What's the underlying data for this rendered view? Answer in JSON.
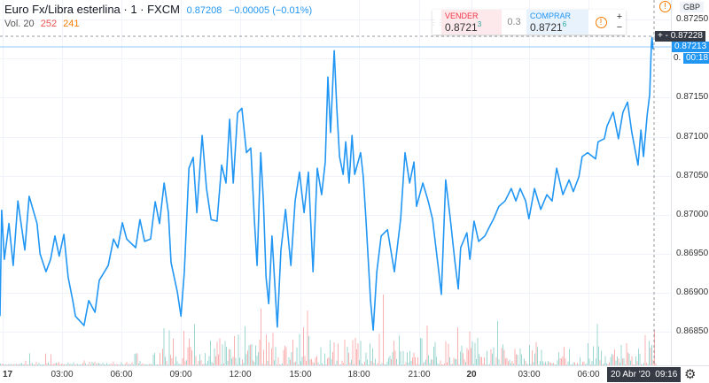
{
  "header": {
    "symbol_title": "Euro Fx/Libra esterlina · 1 · FXCM",
    "last": "0.87208",
    "change": "−0.00005 (−0.01%)",
    "volume_label": "Vol. 20",
    "volume_value_1": "252",
    "volume_value_2": "241"
  },
  "trade_panel": {
    "sell_label": "VENDER",
    "sell_price_main": "0.8721",
    "sell_price_pip": "3",
    "spread": "0.3",
    "buy_label": "COMPRAR",
    "buy_price_main": "0.8721",
    "buy_price_pip": "6",
    "info_icon": "!",
    "plus": "+",
    "minus": "−"
  },
  "price_axis": {
    "currency": "GBP",
    "ticks": [
      "0.87250",
      "0.87150",
      "0.87100",
      "0.87050",
      "0.87000",
      "0.86950",
      "0.86900",
      "0.86850"
    ],
    "crosshair_price": "0.87228",
    "crosshair_controls": "+ -",
    "current_price": "0.87213",
    "countdown": "00:18",
    "hidden_tick_fragment": "0."
  },
  "time_axis": {
    "ticks": [
      "17",
      "03:00",
      "06:00",
      "09:00",
      "12:00",
      "15:00",
      "18:00",
      "21:00",
      "20",
      "03:00",
      "06:00"
    ],
    "crosshair_time": "20 Abr '20  09:16"
  },
  "colors": {
    "line": "#2196f3",
    "up_volume": "#26a69a",
    "down_volume": "#ef5350",
    "warning": "#f57c00",
    "crosshair_label": "#363a45"
  },
  "icons": {
    "warning": "warning-circle-icon",
    "settings": "gear-icon"
  },
  "chart_data": {
    "type": "line",
    "y_range": [
      0.8682,
      0.87275
    ],
    "grid": true,
    "series": [
      {
        "points": [
          [
            "16 23:52",
            0.8687
          ],
          [
            "16 23:57",
            0.87006
          ],
          [
            "17 00:05",
            0.86943
          ],
          [
            "17 00:19",
            0.86989
          ],
          [
            "17 00:32",
            0.86935
          ],
          [
            "17 00:46",
            0.87018
          ],
          [
            "17 01:07",
            0.86955
          ],
          [
            "17 01:20",
            0.87024
          ],
          [
            "17 01:44",
            0.86989
          ],
          [
            "17 01:53",
            0.8695
          ],
          [
            "17 02:11",
            0.86927
          ],
          [
            "17 02:25",
            0.86943
          ],
          [
            "17 02:38",
            0.86973
          ],
          [
            "17 02:51",
            0.86947
          ],
          [
            "17 03:05",
            0.86975
          ],
          [
            "17 03:18",
            0.8692
          ],
          [
            "17 03:32",
            0.8689
          ],
          [
            "17 03:40",
            0.8687
          ],
          [
            "17 04:06",
            0.86858
          ],
          [
            "17 04:20",
            0.8689
          ],
          [
            "17 04:39",
            0.86875
          ],
          [
            "17 04:52",
            0.86916
          ],
          [
            "17 05:19",
            0.86935
          ],
          [
            "17 05:35",
            0.86969
          ],
          [
            "17 05:48",
            0.86958
          ],
          [
            "17 06:02",
            0.8699
          ],
          [
            "17 06:15",
            0.86969
          ],
          [
            "17 06:42",
            0.86958
          ],
          [
            "17 06:55",
            0.86994
          ],
          [
            "17 07:09",
            0.86966
          ],
          [
            "17 07:27",
            0.86969
          ],
          [
            "17 07:41",
            0.87017
          ],
          [
            "17 07:54",
            0.86989
          ],
          [
            "17 08:08",
            0.87041
          ],
          [
            "17 08:21",
            0.87003
          ],
          [
            "17 08:29",
            0.86939
          ],
          [
            "17 08:48",
            0.86901
          ],
          [
            "17 08:59",
            0.8687
          ],
          [
            "17 09:09",
            0.86927
          ],
          [
            "17 09:23",
            0.8706
          ],
          [
            "17 09:36",
            0.87074
          ],
          [
            "17 09:47",
            0.87003
          ],
          [
            "17 10:03",
            0.87102
          ],
          [
            "17 10:16",
            0.87034
          ],
          [
            "17 10:30",
            0.86994
          ],
          [
            "17 10:48",
            0.86992
          ],
          [
            "17 11:02",
            0.87064
          ],
          [
            "17 11:15",
            0.87041
          ],
          [
            "17 11:26",
            0.87123
          ],
          [
            "17 11:37",
            0.87041
          ],
          [
            "17 11:50",
            0.87131
          ],
          [
            "17 12:03",
            0.87137
          ],
          [
            "17 12:17",
            0.8708
          ],
          [
            "17 12:30",
            0.87086
          ],
          [
            "17 12:41",
            0.86992
          ],
          [
            "17 12:49",
            0.86935
          ],
          [
            "17 13:00",
            0.8708
          ],
          [
            "17 13:08",
            0.87018
          ],
          [
            "17 13:16",
            0.8692
          ],
          [
            "17 13:24",
            0.86886
          ],
          [
            "17 13:34",
            0.86973
          ],
          [
            "17 13:50",
            0.86856
          ],
          [
            "17 14:01",
            0.86955
          ],
          [
            "17 14:15",
            0.87007
          ],
          [
            "17 14:31",
            0.86935
          ],
          [
            "17 14:44",
            0.87018
          ],
          [
            "17 14:57",
            0.87055
          ],
          [
            "17 15:11",
            0.87003
          ],
          [
            "17 15:24",
            0.87055
          ],
          [
            "17 15:38",
            0.86927
          ],
          [
            "17 15:51",
            0.8706
          ],
          [
            "17 16:04",
            0.87026
          ],
          [
            "17 16:15",
            0.87068
          ],
          [
            "17 16:23",
            0.87177
          ],
          [
            "17 16:31",
            0.87106
          ],
          [
            "17 16:42",
            0.87211
          ],
          [
            "17 16:50",
            0.87136
          ],
          [
            "17 16:58",
            0.87075
          ],
          [
            "17 17:09",
            0.87052
          ],
          [
            "17 17:17",
            0.87094
          ],
          [
            "17 17:27",
            0.87041
          ],
          [
            "17 17:36",
            0.87102
          ],
          [
            "17 17:44",
            0.87052
          ],
          [
            "17 18:02",
            0.8708
          ],
          [
            "17 18:10",
            0.87049
          ],
          [
            "17 18:18",
            0.86995
          ],
          [
            "17 18:32",
            0.8689
          ],
          [
            "17 18:40",
            0.86852
          ],
          [
            "17 18:51",
            0.86927
          ],
          [
            "17 19:04",
            0.86973
          ],
          [
            "17 19:23",
            0.86981
          ],
          [
            "17 19:44",
            0.86927
          ],
          [
            "17 20:03",
            0.86995
          ],
          [
            "17 20:16",
            0.8708
          ],
          [
            "17 20:30",
            0.87041
          ],
          [
            "17 20:43",
            0.87068
          ],
          [
            "17 20:51",
            0.87011
          ],
          [
            "17 21:10",
            0.87041
          ],
          [
            "17 21:26",
            0.87018
          ],
          [
            "17 21:39",
            0.86995
          ],
          [
            "17 21:58",
            0.86927
          ],
          [
            "17 22:06",
            0.86898
          ],
          [
            "17 22:19",
            0.87045
          ],
          [
            "17 22:33",
            0.86995
          ],
          [
            "17 22:46",
            0.86943
          ],
          [
            "17 22:57",
            0.86905
          ],
          [
            "19 23:27",
            0.86958
          ],
          [
            "19 23:46",
            0.86977
          ],
          [
            "19 23:55",
            0.86943
          ],
          [
            "20 00:08",
            0.86992
          ],
          [
            "20 00:22",
            0.86966
          ],
          [
            "20 00:41",
            0.86973
          ],
          [
            "20 00:54",
            0.86984
          ],
          [
            "20 01:08",
            0.86995
          ],
          [
            "20 01:24",
            0.87011
          ],
          [
            "20 01:43",
            0.87018
          ],
          [
            "20 02:02",
            0.87034
          ],
          [
            "20 02:16",
            0.87018
          ],
          [
            "20 02:29",
            0.87034
          ],
          [
            "20 02:46",
            0.87018
          ],
          [
            "20 02:56",
            0.86995
          ],
          [
            "20 03:13",
            0.87034
          ],
          [
            "20 03:32",
            0.87007
          ],
          [
            "20 03:51",
            0.87026
          ],
          [
            "20 04:07",
            0.87018
          ],
          [
            "20 04:21",
            0.8706
          ],
          [
            "20 04:40",
            0.87026
          ],
          [
            "20 04:59",
            0.87045
          ],
          [
            "20 05:12",
            0.8703
          ],
          [
            "20 05:29",
            0.87049
          ],
          [
            "20 05:39",
            0.87075
          ],
          [
            "20 05:56",
            0.8708
          ],
          [
            "20 06:20",
            0.87072
          ],
          [
            "20 06:28",
            0.87094
          ],
          [
            "20 06:47",
            0.87098
          ],
          [
            "20 06:55",
            0.87114
          ],
          [
            "20 07:14",
            0.87132
          ],
          [
            "20 07:30",
            0.87098
          ],
          [
            "20 07:44",
            0.87132
          ],
          [
            "20 07:58",
            0.87145
          ],
          [
            "20 08:11",
            0.87106
          ],
          [
            "20 08:30",
            0.87064
          ],
          [
            "20 08:39",
            0.87109
          ],
          [
            "20 08:47",
            0.87075
          ],
          [
            "20 08:58",
            0.87128
          ],
          [
            "20 09:06",
            0.87155
          ],
          [
            "20 09:11",
            0.87219
          ],
          [
            "20 09:13",
            0.87228
          ],
          [
            "20 09:16",
            0.87213
          ]
        ]
      }
    ]
  }
}
